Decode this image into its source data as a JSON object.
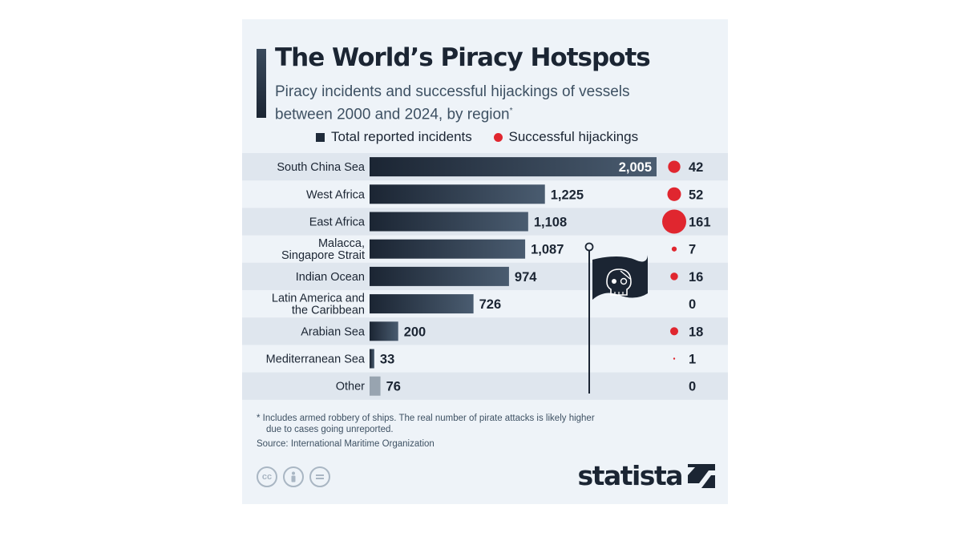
{
  "title": "The World’s Piracy Hotspots",
  "subtitle_line1": "Piracy incidents and successful hijackings of vessels",
  "subtitle_line2": "between 2000 and 2024, by region",
  "subtitle_mark": "*",
  "legend": {
    "incidents": "Total reported incidents",
    "hijackings": "Successful hijackings"
  },
  "chart_data": {
    "type": "bar",
    "orientation": "horizontal",
    "categories": [
      [
        "South China Sea"
      ],
      [
        "West Africa"
      ],
      [
        "East Africa"
      ],
      [
        "Malacca,",
        "Singapore Strait"
      ],
      [
        "Indian Ocean"
      ],
      [
        "Latin America and",
        "the Caribbean"
      ],
      [
        "Arabian Sea"
      ],
      [
        "Mediterranean Sea"
      ],
      [
        "Other"
      ]
    ],
    "series": [
      {
        "name": "Total reported incidents",
        "values": [
          2005,
          1225,
          1108,
          1087,
          974,
          726,
          200,
          33,
          76
        ],
        "labels": [
          "2,005",
          "1,225",
          "1,108",
          "1,087",
          "974",
          "726",
          "200",
          "33",
          "76"
        ]
      },
      {
        "name": "Successful hijackings",
        "values": [
          42,
          52,
          161,
          7,
          16,
          0,
          18,
          1,
          0
        ],
        "labels": [
          "42",
          "52",
          "161",
          "7",
          "16",
          "0",
          "18",
          "1",
          "0"
        ]
      }
    ],
    "colors": {
      "bar_dark": "#1b2533",
      "bar_light": "#4a5c70",
      "bar_other": "#98a4b0",
      "bubble": "#e0262f",
      "stripe": "#dfe6ee"
    }
  },
  "footnote_line1": "* Includes armed robbery of ships. The real number of pirate attacks is likely higher",
  "footnote_line2": "due to cases going unreported.",
  "source": "Source: International Maritime Organization",
  "license_icons": [
    "cc",
    "person-icon",
    "equals-icon"
  ],
  "cc_text": "cc",
  "logo": "statista"
}
